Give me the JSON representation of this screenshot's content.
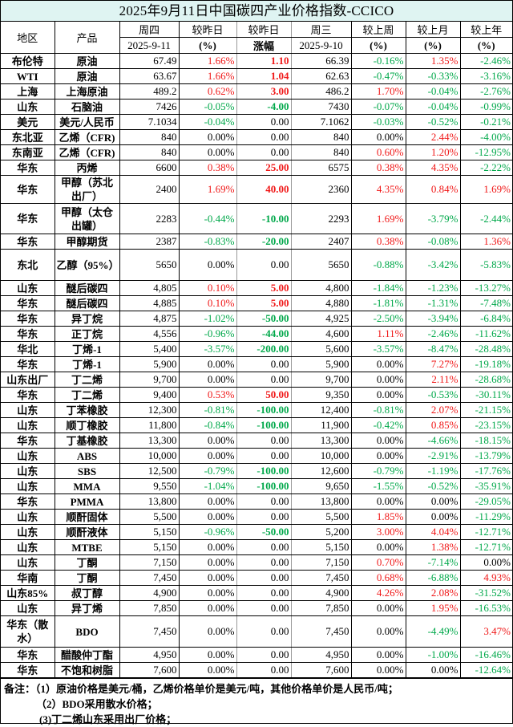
{
  "title": "2025年9月11日中国碳四产业价格指数-CCICO",
  "header": {
    "region": "地区",
    "product": "产品",
    "thu_day": "周四",
    "thu_date": "2025-9-11",
    "pct_day_1": "较昨日",
    "pct_day_2": "(%)",
    "chg_day_1": "较昨日",
    "chg_day_2": "涨幅",
    "wed_day": "周三",
    "wed_date": "2025-9-10",
    "wk_1": "较上周",
    "wk_2": "(%)",
    "mo_1": "较上月",
    "mo_2": "(%)",
    "yr_1": "较上年",
    "yr_2": "(%)"
  },
  "colors": {
    "up": "#f01818",
    "down": "#00a84a",
    "title_bg": "#dff4f2"
  },
  "rows": [
    [
      "布伦特",
      "原油",
      "67.49",
      "1.66%",
      "1.10",
      "66.39",
      "-0.16%",
      "1.35%",
      "-2.46%"
    ],
    [
      "WTI",
      "原油",
      "63.67",
      "1.66%",
      "1.04",
      "62.63",
      "-0.47%",
      "-0.33%",
      "-3.16%"
    ],
    [
      "上海",
      "上海原油",
      "489.2",
      "0.62%",
      "3.00",
      "486.2",
      "1.70%",
      "-0.04%",
      "-2.76%"
    ],
    [
      "山东",
      "石脑油",
      "7426",
      "-0.05%",
      "-4.00",
      "7430",
      "-0.07%",
      "-0.04%",
      "-0.99%"
    ],
    [
      "美元",
      "美元/人民币",
      "7.1034",
      "-0.04%",
      "0.00",
      "7.1062",
      "-0.03%",
      "-0.52%",
      "-0.21%"
    ],
    [
      "东北亚",
      "乙烯（CFR)",
      "840",
      "0.00%",
      "0.00",
      "840",
      "0.00%",
      "2.44%",
      "-4.00%"
    ],
    [
      "东南亚",
      "乙烯（CFR)",
      "840",
      "0.00%",
      "0.00",
      "840",
      "0.60%",
      "1.20%",
      "-12.95%"
    ],
    [
      "华东",
      "丙烯",
      "6600",
      "0.38%",
      "25.00",
      "6575",
      "0.38%",
      "4.35%",
      "-2.22%"
    ],
    [
      "华东",
      "甲醇（苏北出厂）",
      "2400",
      "1.69%",
      "40.00",
      "2360",
      "4.35%",
      "0.84%",
      "1.69%"
    ],
    [
      "华东",
      "甲醇（太仓出罐）",
      "2283",
      "-0.44%",
      "-10.00",
      "2293",
      "1.69%",
      "-3.79%",
      "-2.44%"
    ],
    [
      "华东",
      "甲醇期货",
      "2387",
      "-0.83%",
      "-20.00",
      "2407",
      "0.38%",
      "-0.08%",
      "1.36%"
    ],
    [
      "东北",
      "乙醇（95%）",
      "5650",
      "0.00%",
      "0.00",
      "5650",
      "-0.88%",
      "-3.42%",
      "-5.83%"
    ],
    [
      "山东",
      "醚后碳四",
      "4,805",
      "0.10%",
      "5.00",
      "4,800",
      "-1.84%",
      "-1.23%",
      "-13.27%"
    ],
    [
      "华东",
      "醚后碳四",
      "4,885",
      "0.10%",
      "5.00",
      "4,880",
      "-1.81%",
      "-1.31%",
      "-7.48%"
    ],
    [
      "华东",
      "异丁烷",
      "4,875",
      "-1.02%",
      "-50.00",
      "4,925",
      "-2.50%",
      "-3.94%",
      "-6.84%"
    ],
    [
      "华东",
      "正丁烷",
      "4,556",
      "-0.96%",
      "-44.00",
      "4,600",
      "1.11%",
      "-2.46%",
      "-11.62%"
    ],
    [
      "华北",
      "丁烯-1",
      "5,400",
      "-3.57%",
      "-200.00",
      "5,600",
      "-3.57%",
      "-8.47%",
      "-28.48%"
    ],
    [
      "华东",
      "丁烯-1",
      "5,900",
      "0.00%",
      "0.00",
      "5,900",
      "0.00%",
      "7.27%",
      "-19.18%"
    ],
    [
      "山东出厂",
      "丁二烯",
      "9,700",
      "0.00%",
      "0.00",
      "9,700",
      "0.00%",
      "2.11%",
      "-28.68%"
    ],
    [
      "华东",
      "丁二烯",
      "9,400",
      "0.53%",
      "50.00",
      "9,350",
      "0.00%",
      "-0.53%",
      "-30.11%"
    ],
    [
      "山东",
      "丁苯橡胶",
      "12,300",
      "-0.81%",
      "-100.00",
      "12,400",
      "-0.81%",
      "2.07%",
      "-21.15%"
    ],
    [
      "山东",
      "顺丁橡胶",
      "11,800",
      "-0.84%",
      "-100.00",
      "11,900",
      "-0.42%",
      "0.85%",
      "-23.15%"
    ],
    [
      "华东",
      "丁基橡胶",
      "13,300",
      "0.00%",
      "0.00",
      "13,300",
      "0.00%",
      "-4.66%",
      "-18.15%"
    ],
    [
      "山东",
      "ABS",
      "10,000",
      "0.00%",
      "0.00",
      "10,000",
      "0.00%",
      "-2.91%",
      "-13.79%"
    ],
    [
      "山东",
      "SBS",
      "12,500",
      "-0.79%",
      "-100.00",
      "12,600",
      "-0.79%",
      "-1.19%",
      "-17.76%"
    ],
    [
      "山东",
      "MMA",
      "9,550",
      "-1.04%",
      "-100.00",
      "9,650",
      "-1.55%",
      "-0.52%",
      "-35.91%"
    ],
    [
      "华东",
      "PMMA",
      "13,800",
      "0.00%",
      "0.00",
      "13,800",
      "0.00%",
      "0.00%",
      "-29.05%"
    ],
    [
      "山东",
      "顺酐固体",
      "5,500",
      "0.00%",
      "0.00",
      "5,500",
      "1.85%",
      "0.00%",
      "-11.29%"
    ],
    [
      "山东",
      "顺酐液体",
      "5,150",
      "-0.96%",
      "-50.00",
      "5,200",
      "3.00%",
      "4.04%",
      "-12.71%"
    ],
    [
      "山东",
      "MTBE",
      "5,150",
      "0.00%",
      "0.00",
      "5,150",
      "0.00%",
      "1.38%",
      "-12.71%"
    ],
    [
      "山东",
      "丁酮",
      "7,150",
      "0.00%",
      "0.00",
      "7,150",
      "0.70%",
      "-7.14%",
      "0.00%"
    ],
    [
      "华南",
      "丁酮",
      "7,450",
      "0.00%",
      "0.00",
      "7,450",
      "0.68%",
      "-6.88%",
      "4.93%"
    ],
    [
      "山东85%",
      "叔丁醇",
      "4,900",
      "0.00%",
      "0.00",
      "4,900",
      "4.26%",
      "2.08%",
      "-31.52%"
    ],
    [
      "山东",
      "异丁烯",
      "7,850",
      "0.00%",
      "0.00",
      "7,850",
      "0.00%",
      "1.95%",
      "-16.53%"
    ],
    [
      "华东（散水）",
      "BDO",
      "7,450",
      "0.00%",
      "0.00",
      "7,450",
      "0.00%",
      "-4.49%",
      "3.47%"
    ],
    [
      "华东",
      "醋酸仲丁酯",
      "4,950",
      "0.00%",
      "0.00",
      "4,950",
      "0.00%",
      "-1.00%",
      "-16.46%"
    ],
    [
      "华东",
      "不饱和树脂",
      "7,600",
      "0.00%",
      "0.00",
      "7,600",
      "0.00%",
      "0.00%",
      "-12.64%"
    ]
  ],
  "notes": [
    "备注：（1）原油价格是美元/桶，乙烯价格单价是美元/吨，其他价格单价是人民币/吨；",
    "（2）BDO采用散水价格；",
    "(3)丁二烯山东采用出厂价格；"
  ]
}
